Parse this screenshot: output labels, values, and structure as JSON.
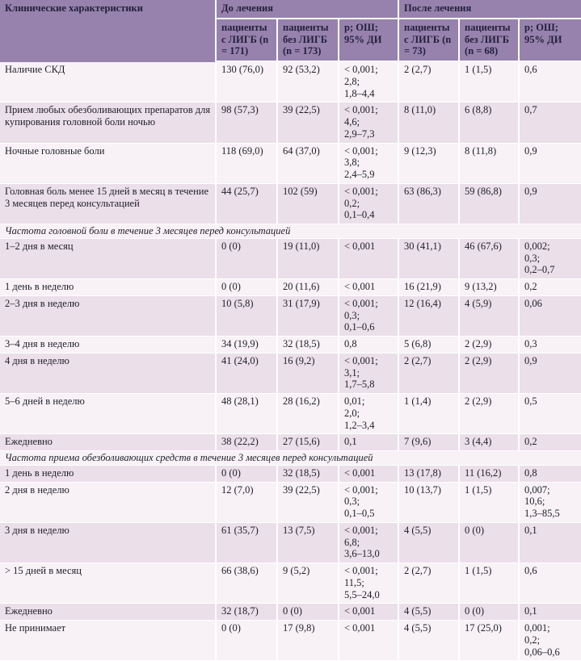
{
  "colors": {
    "header_bg": "#9682ac",
    "header_text": "#241f3d",
    "row_light": "#f8f2f6",
    "row_dark": "#ebdfe9",
    "separator": "#ffffff",
    "body_text": "#1e1e28"
  },
  "table": {
    "header": {
      "characteristics": "Клинические характеристики",
      "group_before": "До лечения",
      "group_after": "После лечения",
      "subcols": [
        "пациенты с ЛИГБ (n = 171)",
        "пациенты без ЛИГБ (n = 173)",
        "р; ОШ; 95% ДИ",
        "пациенты с ЛИГБ (n = 73)",
        "пациенты без ЛИГБ (n = 68)",
        "р; ОШ; 95% ДИ"
      ]
    },
    "rows": [
      {
        "type": "data",
        "label": "Наличие СКД",
        "cells": [
          "130 (76,0)",
          "92 (53,2)",
          "< 0,001;\n2,8;\n1,8–4,4",
          "2 (2,7)",
          "1 (1,5)",
          "0,6"
        ]
      },
      {
        "type": "data",
        "label": "Прием любых обезболивающих препаратов для купирования головной боли ночью",
        "cells": [
          "98 (57,3)",
          "39 (22,5)",
          "< 0,001;\n4,6;\n2,9–7,3",
          "8 (11,0)",
          "6 (8,8)",
          "0,7"
        ]
      },
      {
        "type": "data",
        "label": "Ночные головные боли",
        "cells": [
          "118 (69,0)",
          "64 (37,0)",
          "< 0,001;\n3,8;\n2,4–5,9",
          "9 (12,3)",
          "8 (11,8)",
          "0,9"
        ]
      },
      {
        "type": "data",
        "label": "Головная боль менее 15 дней в месяц в течение 3 месяцев перед консультацией",
        "cells": [
          "44 (25,7)",
          "102 (59)",
          "< 0,001;\n0,2;\n0,1–0,4",
          "63 (86,3)",
          "59 (86,8)",
          "0,9"
        ]
      },
      {
        "type": "section",
        "label": "Частота головной боли в течение 3 месяцев перед консультацией"
      },
      {
        "type": "data",
        "label": "1–2 дня в месяц",
        "cells": [
          "0 (0)",
          "19 (11,0)",
          "< 0,001",
          "30 (41,1)",
          "46 (67,6)",
          "0,002;\n0,3;\n0,2–0,7"
        ]
      },
      {
        "type": "data",
        "label": "1 день в неделю",
        "cells": [
          "0 (0)",
          "20 (11,6)",
          "< 0,001",
          "16 (21,9)",
          "9 (13,2)",
          "0,2"
        ]
      },
      {
        "type": "data",
        "label": "2–3 дня в неделю",
        "cells": [
          "10 (5,8)",
          "31 (17,9)",
          "< 0,001;\n0,3;\n0,1–0,6",
          "12 (16,4)",
          "4 (5,9)",
          "0,06"
        ]
      },
      {
        "type": "data",
        "label": "3–4 дня в неделю",
        "cells": [
          "34 (19,9)",
          "32 (18,5)",
          "0,8",
          "5 (6,8)",
          "2 (2,9)",
          "0,3"
        ]
      },
      {
        "type": "data",
        "label": "4 дня в неделю",
        "cells": [
          "41 (24,0)",
          "16 (9,2)",
          "< 0,001;\n3,1;\n1,7–5,8",
          "2 (2,7)",
          "2 (2,9)",
          "0,9"
        ]
      },
      {
        "type": "data",
        "label": "5–6 дней в неделю",
        "cells": [
          "48 (28,1)",
          "28 (16,2)",
          "0,01;\n2,0;\n1,2–3,4",
          "1 (1,4)",
          "2 (2,9)",
          "0,5"
        ]
      },
      {
        "type": "data",
        "label": "Ежедневно",
        "cells": [
          "38 (22,2)",
          "27 (15,6)",
          "0,1",
          "7 (9,6)",
          "3 (4,4)",
          "0,2"
        ]
      },
      {
        "type": "section",
        "label": "Частота приема обезболивающих средств в течение 3 месяцев перед консультацией"
      },
      {
        "type": "data",
        "label": "1 день в неделю",
        "cells": [
          "0 (0)",
          "32 (18,5)",
          "< 0,001",
          "13 (17,8)",
          "11 (16,2)",
          "0,8"
        ]
      },
      {
        "type": "data",
        "label": "2 дня в неделю",
        "cells": [
          "12 (7,0)",
          "39 (22,5)",
          "< 0,001;\n0,3;\n0,1–0,5",
          "10 (13,7)",
          "1 (1,5)",
          "0,007;\n10,6;\n1,3–85,5"
        ]
      },
      {
        "type": "data",
        "label": "3 дня в неделю",
        "cells": [
          "61 (35,7)",
          "13 (7,5)",
          "< 0,001;\n6,8;\n3,6–13,0",
          "4 (5,5)",
          "0 (0)",
          "0,1"
        ]
      },
      {
        "type": "data",
        "label": "> 15 дней в месяц",
        "cells": [
          "66 (38,6)",
          "9 (5,2)",
          "< 0,001;\n11,5;\n5,5–24,0",
          "2 (2,7)",
          "1 (1,5)",
          "0,6"
        ]
      },
      {
        "type": "data",
        "label": "Ежедневно",
        "cells": [
          "32 (18,7)",
          "0 (0)",
          "< 0,001",
          "4 (5,5)",
          "0 (0)",
          "0,1"
        ]
      },
      {
        "type": "data",
        "label": "Не принимает",
        "cells": [
          "0 (0)",
          "17 (9,8)",
          "< 0,001",
          "4 (5,5)",
          "17 (25,0)",
          "0,001;\n0,2;\n0,06–0,6"
        ]
      }
    ]
  }
}
